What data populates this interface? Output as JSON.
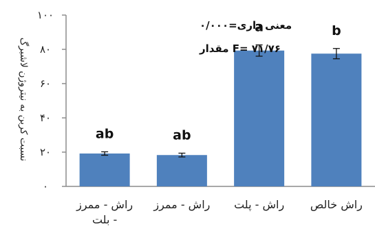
{
  "chart_data": {
    "type": "bar",
    "categories": [
      "راش خالص",
      "راش - پلت",
      "راش - ممرز",
      "راش - ممرز - بلت"
    ],
    "category_lines": [
      [
        "راش خالص"
      ],
      [
        "راش - پلت"
      ],
      [
        "راش - ممرز"
      ],
      [
        "راش - ممرز",
        "- بلت"
      ]
    ],
    "values": [
      77.5,
      79.3,
      18.3,
      19.2
    ],
    "errors": [
      3.0,
      3.3,
      1.1,
      1.0
    ],
    "data_labels": [
      "b",
      "a",
      "ab",
      "ab"
    ],
    "ylabel": "نسبت کربن به نیتروژن لاشبرگ",
    "yticks": [
      0,
      20,
      40,
      60,
      80,
      100
    ],
    "ytick_labels": [
      "۰",
      "۲۰",
      "۴۰",
      "۶۰",
      "۸۰",
      "۱۰۰"
    ],
    "ylim": [
      0,
      100
    ],
    "annotations": [
      "معنی داری=۰/۰۰۰",
      "F= ۷۱/۷۶ مقدار"
    ],
    "bar_color": "#4f81bd",
    "grid": false
  }
}
